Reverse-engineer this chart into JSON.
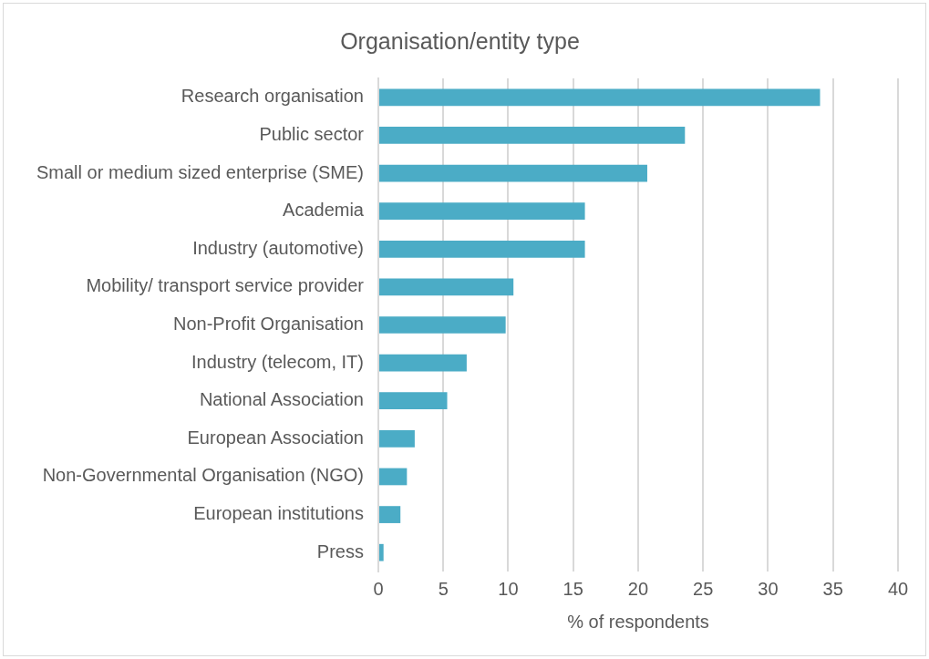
{
  "chart_data": {
    "type": "bar",
    "orientation": "horizontal",
    "title": "Organisation/entity type",
    "xlabel": "% of respondents",
    "categories": [
      "Research organisation",
      "Public sector",
      "Small or medium sized enterprise (SME)",
      "Academia",
      "Industry (automotive)",
      "Mobility/ transport service provider",
      "Non-Profit Organisation",
      "Industry (telecom, IT)",
      "National Association",
      "European Association",
      "Non-Governmental Organisation (NGO)",
      "European institutions",
      "Press"
    ],
    "values": [
      34.0,
      23.6,
      20.7,
      15.9,
      15.9,
      10.4,
      9.8,
      6.8,
      5.3,
      2.8,
      2.2,
      1.7,
      0.4
    ],
    "color": "#4bacc6",
    "xlim": [
      0,
      40
    ],
    "xticks": [
      0,
      5,
      10,
      15,
      20,
      25,
      30,
      35,
      40
    ],
    "grid": "x",
    "legend": false
  }
}
